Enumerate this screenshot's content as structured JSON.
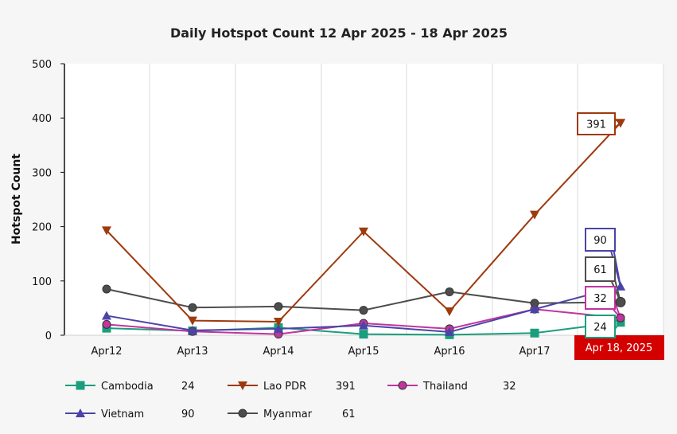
{
  "chart_data": {
    "type": "line",
    "title": "Daily Hotspot Count 12 Apr 2025 - 18 Apr 2025",
    "xlabel": "",
    "ylabel": "Hotspot Count",
    "categories": [
      "Apr12",
      "Apr13",
      "Apr14",
      "Apr15",
      "Apr16",
      "Apr17",
      "Apr 18, 2025"
    ],
    "highlighted_category": "Apr 18, 2025",
    "ylim": [
      0,
      500
    ],
    "yticks": [
      0,
      100,
      200,
      300,
      400,
      500
    ],
    "grid": "vertical",
    "series": [
      {
        "name": "Cambodia",
        "color": "#1a9e7d",
        "marker": "square",
        "values": [
          13,
          8,
          14,
          2,
          1,
          4,
          24
        ],
        "latest": "24"
      },
      {
        "name": "Lao PDR",
        "color": "#9e3a0e",
        "marker": "triangle-down",
        "values": [
          193,
          27,
          25,
          191,
          44,
          222,
          391
        ],
        "latest": "391"
      },
      {
        "name": "Thailand",
        "color": "#c0359e",
        "marker": "circle",
        "values": [
          20,
          7,
          2,
          22,
          12,
          48,
          32
        ],
        "latest": "32"
      },
      {
        "name": "Vietnam",
        "color": "#4a44a8",
        "marker": "triangle-up",
        "values": [
          36,
          9,
          12,
          18,
          6,
          48,
          90
        ],
        "latest": "90"
      },
      {
        "name": "Myanmar",
        "color": "#4d4d4d",
        "marker": "circle",
        "values": [
          85,
          51,
          53,
          46,
          80,
          59,
          61
        ],
        "latest": "61"
      }
    ]
  }
}
